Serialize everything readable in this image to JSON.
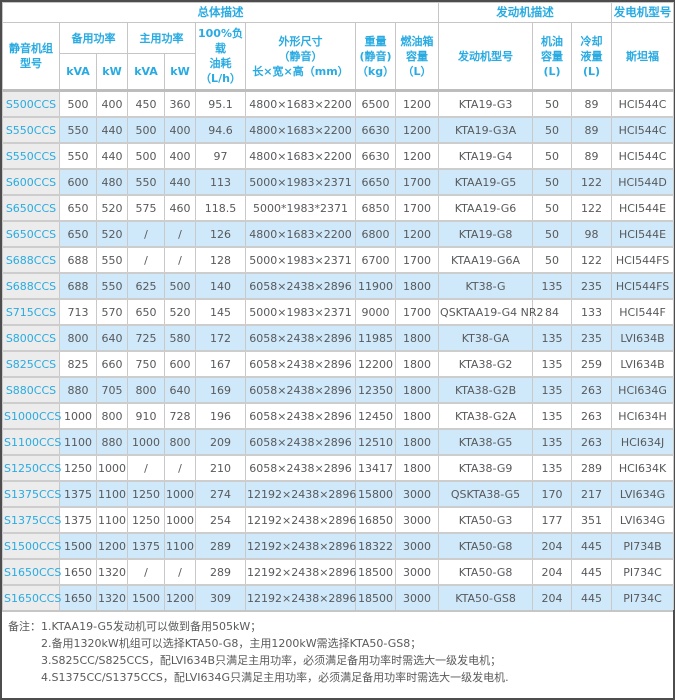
{
  "colors": {
    "accent": "#29abe2",
    "alt_row": "#cfe9fa",
    "model_col_bg": "#ececec",
    "body_text": "#58595b",
    "border": "#c9c9c9"
  },
  "table": {
    "top_headers": {
      "overall": "总体描述",
      "engine": "发动机描述",
      "generator": "发电机型号"
    },
    "headers": {
      "model": "静音机组\n型号",
      "standby": "备用功率",
      "prime": "主用功率",
      "kva": "kVA",
      "kw": "kW",
      "fuel": "100%负载\n油耗\n（L/h）",
      "dims": "外形尺寸\n（静音）\n长×宽×高（mm）",
      "weight": "重量\n(静音)\n（kg）",
      "tank": "燃油箱\n容量\n（L）",
      "engine": "发动机型号",
      "oil": "机油\n容量\n(L)",
      "coolant": "冷却\n液量\n(L)",
      "stamford": "斯坦福"
    },
    "rows": [
      {
        "model": "S500CCS",
        "standby_kva": "500",
        "standby_kw": "400",
        "prime_kva": "450",
        "prime_kw": "360",
        "fuel": "95.1",
        "dims": "4800×1683×2200",
        "weight": "6500",
        "tank": "1200",
        "engine": "KTA19-G3",
        "oil": "50",
        "coolant": "89",
        "stamford": "HCI544C"
      },
      {
        "model": "S550CCS",
        "standby_kva": "550",
        "standby_kw": "440",
        "prime_kva": "500",
        "prime_kw": "400",
        "fuel": "94.6",
        "dims": "4800×1683×2200",
        "weight": "6630",
        "tank": "1200",
        "engine": "KTA19-G3A",
        "oil": "50",
        "coolant": "89",
        "stamford": "HCI544C"
      },
      {
        "model": "S550CCS",
        "standby_kva": "550",
        "standby_kw": "440",
        "prime_kva": "500",
        "prime_kw": "400",
        "fuel": "97",
        "dims": "4800×1683×2200",
        "weight": "6630",
        "tank": "1200",
        "engine": "KTA19-G4",
        "oil": "50",
        "coolant": "89",
        "stamford": "HCI544C"
      },
      {
        "model": "S600CCS",
        "standby_kva": "600",
        "standby_kw": "480",
        "prime_kva": "550",
        "prime_kw": "440",
        "fuel": "113",
        "dims": "5000×1983×2371",
        "weight": "6650",
        "tank": "1700",
        "engine": "KTAA19-G5",
        "oil": "50",
        "coolant": "122",
        "stamford": "HCI544D"
      },
      {
        "model": "S650CCS",
        "standby_kva": "650",
        "standby_kw": "520",
        "prime_kva": "575",
        "prime_kw": "460",
        "fuel": "118.5",
        "dims": "5000*1983*2371",
        "weight": "6850",
        "tank": "1700",
        "engine": "KTAA19-G6",
        "oil": "50",
        "coolant": "122",
        "stamford": "HCI544E"
      },
      {
        "model": "S650CCS",
        "standby_kva": "650",
        "standby_kw": "520",
        "prime_kva": "/",
        "prime_kw": "/",
        "fuel": "126",
        "dims": "4800×1683×2200",
        "weight": "6800",
        "tank": "1200",
        "engine": "KTA19-G8",
        "oil": "50",
        "coolant": "98",
        "stamford": "HCI544E"
      },
      {
        "model": "S688CCS",
        "standby_kva": "688",
        "standby_kw": "550",
        "prime_kva": "/",
        "prime_kw": "/",
        "fuel": "128",
        "dims": "5000×1983×2371",
        "weight": "6700",
        "tank": "1700",
        "engine": "KTAA19-G6A",
        "oil": "50",
        "coolant": "122",
        "stamford": "HCI544FS"
      },
      {
        "model": "S688CCS",
        "standby_kva": "688",
        "standby_kw": "550",
        "prime_kva": "625",
        "prime_kw": "500",
        "fuel": "140",
        "dims": "6058×2438×2896",
        "weight": "11900",
        "tank": "1800",
        "engine": "KT38-G",
        "oil": "135",
        "coolant": "235",
        "stamford": "HCI544FS"
      },
      {
        "model": "S715CCS",
        "standby_kva": "713",
        "standby_kw": "570",
        "prime_kva": "650",
        "prime_kw": "520",
        "fuel": "145",
        "dims": "5000×1983×2371",
        "weight": "9000",
        "tank": "1700",
        "engine": "QSKTAA19-G4 NR2",
        "oil": "84",
        "coolant": "133",
        "stamford": "HCI544F"
      },
      {
        "model": "S800CCS",
        "standby_kva": "800",
        "standby_kw": "640",
        "prime_kva": "725",
        "prime_kw": "580",
        "fuel": "172",
        "dims": "6058×2438×2896",
        "weight": "11985",
        "tank": "1800",
        "engine": "KT38-GA",
        "oil": "135",
        "coolant": "235",
        "stamford": "LVI634B"
      },
      {
        "model": "S825CCS",
        "standby_kva": "825",
        "standby_kw": "660",
        "prime_kva": "750",
        "prime_kw": "600",
        "fuel": "167",
        "dims": "6058×2438×2896",
        "weight": "12200",
        "tank": "1800",
        "engine": "KTA38-G2",
        "oil": "135",
        "coolant": "259",
        "stamford": "LVI634B"
      },
      {
        "model": "S880CCS",
        "standby_kva": "880",
        "standby_kw": "705",
        "prime_kva": "800",
        "prime_kw": "640",
        "fuel": "169",
        "dims": "6058×2438×2896",
        "weight": "12350",
        "tank": "1800",
        "engine": "KTA38-G2B",
        "oil": "135",
        "coolant": "263",
        "stamford": "HCI634G"
      },
      {
        "model": "S1000CCS",
        "standby_kva": "1000",
        "standby_kw": "800",
        "prime_kva": "910",
        "prime_kw": "728",
        "fuel": "196",
        "dims": "6058×2438×2896",
        "weight": "12450",
        "tank": "1800",
        "engine": "KTA38-G2A",
        "oil": "135",
        "coolant": "263",
        "stamford": "HCI634H"
      },
      {
        "model": "S1100CCS",
        "standby_kva": "1100",
        "standby_kw": "880",
        "prime_kva": "1000",
        "prime_kw": "800",
        "fuel": "209",
        "dims": "6058×2438×2896",
        "weight": "12510",
        "tank": "1800",
        "engine": "KTA38-G5",
        "oil": "135",
        "coolant": "263",
        "stamford": "HCI634J"
      },
      {
        "model": "S1250CCS",
        "standby_kva": "1250",
        "standby_kw": "1000",
        "prime_kva": "/",
        "prime_kw": "/",
        "fuel": "210",
        "dims": "6058×2438×2896",
        "weight": "13417",
        "tank": "1800",
        "engine": "KTA38-G9",
        "oil": "135",
        "coolant": "289",
        "stamford": "HCI634K"
      },
      {
        "model": "S1375CCS",
        "standby_kva": "1375",
        "standby_kw": "1100",
        "prime_kva": "1250",
        "prime_kw": "1000",
        "fuel": "274",
        "dims": "12192×2438×2896",
        "weight": "15800",
        "tank": "3000",
        "engine": "QSKTA38-G5",
        "oil": "170",
        "coolant": "217",
        "stamford": "LVI634G"
      },
      {
        "model": "S1375CCS",
        "standby_kva": "1375",
        "standby_kw": "1100",
        "prime_kva": "1250",
        "prime_kw": "1000",
        "fuel": "254",
        "dims": "12192×2438×2896",
        "weight": "16850",
        "tank": "3000",
        "engine": "KTA50-G3",
        "oil": "177",
        "coolant": "351",
        "stamford": "LVI634G"
      },
      {
        "model": "S1500CCS",
        "standby_kva": "1500",
        "standby_kw": "1200",
        "prime_kva": "1375",
        "prime_kw": "1100",
        "fuel": "289",
        "dims": "12192×2438×2896",
        "weight": "18322",
        "tank": "3000",
        "engine": "KTA50-G8",
        "oil": "204",
        "coolant": "445",
        "stamford": "PI734B"
      },
      {
        "model": "S1650CCS",
        "standby_kva": "1650",
        "standby_kw": "1320",
        "prime_kva": "/",
        "prime_kw": "/",
        "fuel": "289",
        "dims": "12192×2438×2896",
        "weight": "18500",
        "tank": "3000",
        "engine": "KTA50-G8",
        "oil": "204",
        "coolant": "445",
        "stamford": "PI734C"
      },
      {
        "model": "S1650CCS",
        "standby_kva": "1650",
        "standby_kw": "1320",
        "prime_kva": "1500",
        "prime_kw": "1200",
        "fuel": "309",
        "dims": "12192×2438×2896",
        "weight": "18500",
        "tank": "3000",
        "engine": "KTA50-GS8",
        "oil": "204",
        "coolant": "445",
        "stamford": "PI734C"
      }
    ]
  },
  "notes": {
    "label": "备注：",
    "items": [
      "1.KTAA19-G5发动机可以做到备用505kW；",
      "2.备用1320kW机组可以选择KTA50-G8，主用1200kW需选择KTA50-GS8；",
      "3.S825CC/S825CCS，配LVI634B只满足主用功率，必须满足备用功率时需选大一级发电机；",
      "4.S1375CC/S1375CCS，配LVI634G只满足主用功率，必须满足备用功率时需选大一级发电机."
    ]
  }
}
